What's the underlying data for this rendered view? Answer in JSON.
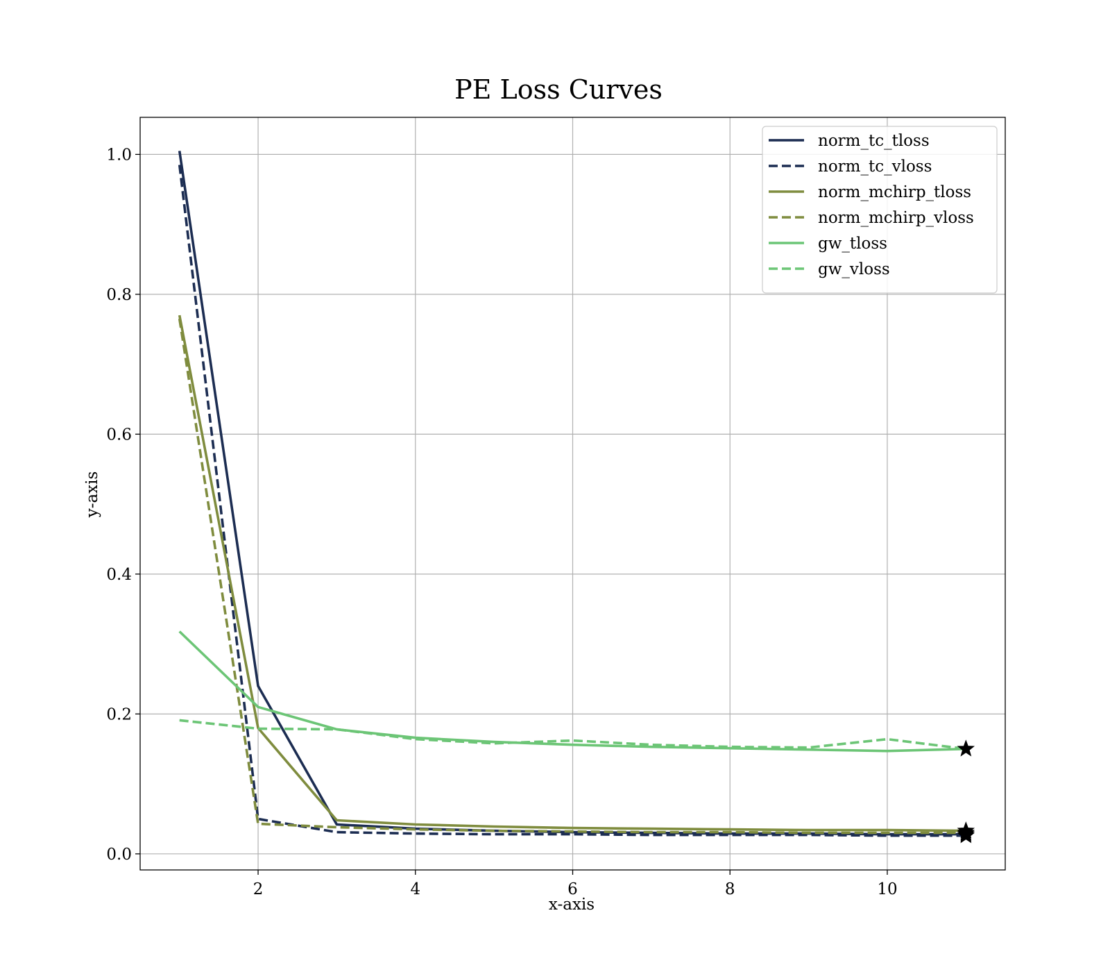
{
  "chart_data": {
    "type": "line",
    "title": "PE Loss Curves",
    "xlabel": "x-axis",
    "ylabel": "y-axis",
    "xlim": [
      0.5,
      11.5
    ],
    "ylim": [
      -0.023,
      1.053
    ],
    "x_ticks": [
      2,
      4,
      6,
      8,
      10
    ],
    "y_ticks": [
      0.0,
      0.2,
      0.4,
      0.6,
      0.8,
      1.0
    ],
    "x_tick_labels": [
      "2",
      "4",
      "6",
      "8",
      "10"
    ],
    "y_tick_labels": [
      "0.0",
      "0.2",
      "0.4",
      "0.6",
      "0.8",
      "1.0"
    ],
    "grid": true,
    "legend_position": "top-right",
    "x": [
      1,
      2,
      3,
      4,
      5,
      6,
      7,
      8,
      9,
      10,
      11
    ],
    "series": [
      {
        "name": "norm_tc_tloss",
        "color": "#1c2d52",
        "dashed": false,
        "values": [
          1.005,
          0.24,
          0.042,
          0.036,
          0.033,
          0.031,
          0.03,
          0.029,
          0.029,
          0.028,
          0.028
        ]
      },
      {
        "name": "norm_tc_vloss",
        "color": "#1c2d52",
        "dashed": true,
        "values": [
          0.985,
          0.05,
          0.031,
          0.029,
          0.028,
          0.028,
          0.027,
          0.027,
          0.027,
          0.026,
          0.026
        ]
      },
      {
        "name": "norm_mchirp_tloss",
        "color": "#7f8c3e",
        "dashed": false,
        "values": [
          0.77,
          0.18,
          0.048,
          0.042,
          0.039,
          0.037,
          0.036,
          0.035,
          0.034,
          0.034,
          0.033
        ]
      },
      {
        "name": "norm_mchirp_vloss",
        "color": "#7f8c3e",
        "dashed": true,
        "values": [
          0.765,
          0.043,
          0.038,
          0.035,
          0.033,
          0.032,
          0.031,
          0.031,
          0.03,
          0.03,
          0.03
        ]
      },
      {
        "name": "gw_tloss",
        "color": "#6cc576",
        "dashed": false,
        "values": [
          0.318,
          0.21,
          0.178,
          0.166,
          0.16,
          0.156,
          0.153,
          0.151,
          0.149,
          0.147,
          0.15
        ]
      },
      {
        "name": "gw_vloss",
        "color": "#6cc576",
        "dashed": true,
        "values": [
          0.191,
          0.179,
          0.178,
          0.164,
          0.158,
          0.162,
          0.156,
          0.153,
          0.152,
          0.164,
          0.15
        ]
      }
    ],
    "best_markers": [
      {
        "series": "gw_vloss",
        "x": 11,
        "y": 0.15
      },
      {
        "series": "norm_mchirp_tloss",
        "x": 11,
        "y": 0.033
      },
      {
        "series": "norm_mchirp_vloss",
        "x": 11,
        "y": 0.03
      },
      {
        "series": "norm_tc_tloss",
        "x": 11,
        "y": 0.028
      },
      {
        "series": "norm_tc_vloss",
        "x": 11,
        "y": 0.026
      }
    ]
  }
}
